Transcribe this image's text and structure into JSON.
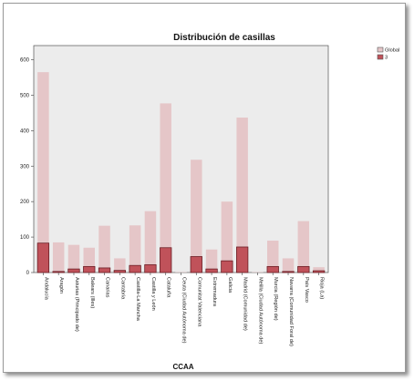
{
  "chart_data": {
    "type": "bar",
    "title": "Distribución de casillas",
    "xlabel": "CCAA",
    "ylabel": "",
    "ylim": [
      0,
      640
    ],
    "yticks": [
      0,
      100,
      200,
      300,
      400,
      500,
      600
    ],
    "categories": [
      "Andalucía",
      "Aragón",
      "Asturias (Principado de)",
      "Balears (Illes)",
      "Canarias",
      "Cantabria",
      "Castilla-La Mancha",
      "Castilla y León",
      "Cataluña",
      "Ceuta (Ciudad Autónoma de)",
      "Comunitat Valenciana",
      "Extremadura",
      "Galicia",
      "Madrid (Comunidad de)",
      "Melilla (Ciudad Autónoma de)",
      "Murcia (Región de)",
      "Navarra (Comunidad Foral de)",
      "País Vasco",
      "Rioja (La)"
    ],
    "series": [
      {
        "name": "Global",
        "color": "#e5c6c8",
        "values": [
          565,
          85,
          78,
          70,
          132,
          40,
          133,
          173,
          477,
          1,
          318,
          65,
          200,
          437,
          1,
          90,
          40,
          145,
          15
        ]
      },
      {
        "name": "3",
        "color": "#c0525a",
        "values": [
          83,
          3,
          10,
          17,
          13,
          6,
          20,
          22,
          70,
          0,
          45,
          10,
          33,
          72,
          0,
          17,
          3,
          17,
          5
        ]
      }
    ],
    "legend_position": "right",
    "grid": false,
    "plot_background": "#ececec",
    "overlapped_bars": true
  }
}
